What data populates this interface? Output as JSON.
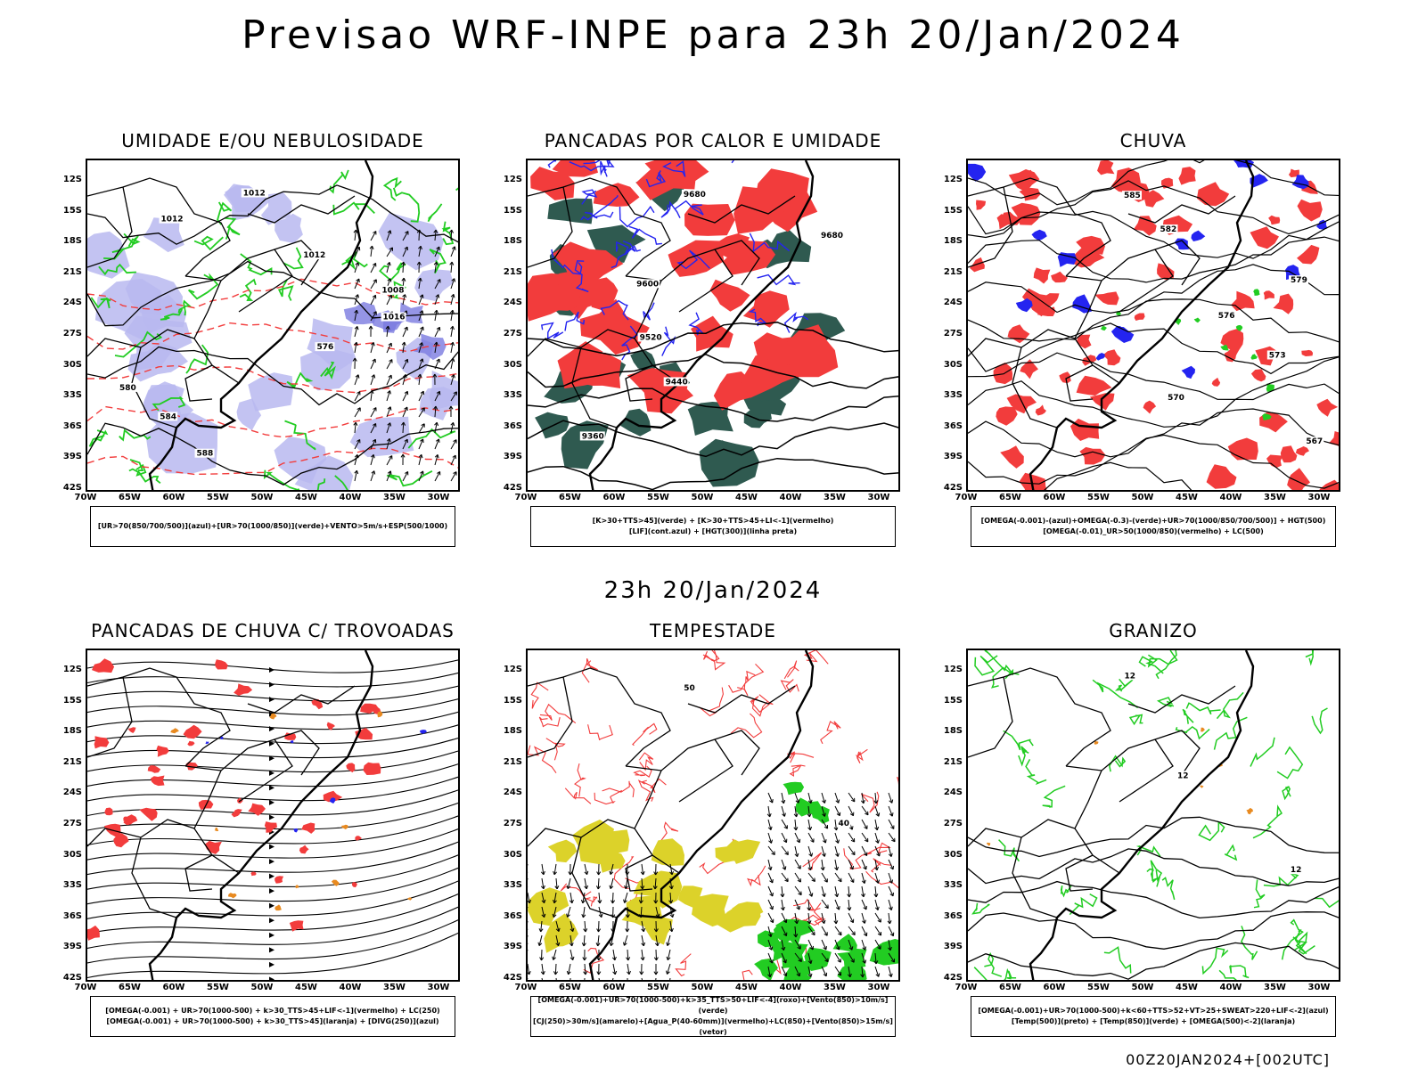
{
  "title": "Previsao WRF-INPE  para 23h 20/Jan/2024",
  "subtitle": "23h 20/Jan/2024",
  "footer": "00Z20JAN2024+[002UTC]",
  "axes": {
    "lat_labels": [
      "12S",
      "15S",
      "18S",
      "21S",
      "24S",
      "27S",
      "30S",
      "33S",
      "36S",
      "39S",
      "42S"
    ],
    "lon_labels": [
      "70W",
      "65W",
      "60W",
      "55W",
      "50W",
      "45W",
      "40W",
      "35W",
      "30W"
    ]
  },
  "colors": {
    "red": "#f23c3c",
    "green": "#22cc22",
    "blue": "#2424f0",
    "lavender": "#b8b8f0",
    "darkgreen": "#2f5a50",
    "yellow": "#dcd22a",
    "orange": "#e88a20",
    "black": "#000000"
  },
  "panels": [
    {
      "title": "UMIDADE E/OU NEBULOSIDADE",
      "legend": [
        "[UR>70(850/700/500)](azul)+[UR>70(1000/850)](verde)+VENTO>5m/s+ESP(500/1000)"
      ],
      "contour_labels": [
        "1012",
        "1012",
        "1012",
        "1008",
        "1016",
        "576",
        "580",
        "584",
        "588"
      ]
    },
    {
      "title": "PANCADAS POR CALOR E UMIDADE",
      "legend": [
        "[K>30+TTS>45](verde)  +  [K>30+TTS>45+LI<-1](vermelho)",
        "[LIF](cont.azul)  +  [HGT(300)](linha preta)"
      ],
      "contour_labels": [
        "9680",
        "9680",
        "9600",
        "9520",
        "9440",
        "9360"
      ]
    },
    {
      "title": "CHUVA",
      "legend": [
        "[OMEGA(-0.001)-(azul)+OMEGA(-0.3)-(verde)+UR>70(1000/850/700/500)]  +  HGT(500)",
        "[OMEGA(-0.01)_UR>50(1000/850)(vermelho)  +  LC(500)"
      ],
      "contour_labels": [
        "585",
        "582",
        "579",
        "576",
        "573",
        "570",
        "567"
      ]
    },
    {
      "title": "PANCADAS DE CHUVA C/ TROVOADAS",
      "legend": [
        "[OMEGA(-0.001)  +  UR>70(1000-500)  +  k>30_TTS>45+LIF<-1](vermelho)  +  LC(250)",
        "[OMEGA(-0.001)  +  UR>70(1000-500)  +  k>30_TTS>45](laranja)  +  [DIVG(250)](azul)"
      ],
      "contour_labels": []
    },
    {
      "title": "TEMPESTADE",
      "legend": [
        "[OMEGA(-0.001)+UR>70(1000-500)+k>35_TTS>50+LIF<-4](roxo)+[Vento(850)>10m/s](verde)",
        "[CJ(250)>30m/s](amarelo)+[Agua_P(40-60mm)](vermelho)+LC(850)+[Vento(850)>15m/s](vetor)"
      ],
      "contour_labels": [
        "50",
        "40"
      ]
    },
    {
      "title": "GRANIZO",
      "legend": [
        "[OMEGA(-0.001)+UR>70(1000-500)+k<60+TTS>52+VT>25+SWEAT>220+LIF<-2](azul)",
        "[Temp(500)](preto)  +  [Temp(850)](verde)  +  [OMEGA(500)<-2](laranja)"
      ],
      "contour_labels": [
        "12",
        "12",
        "12"
      ]
    }
  ]
}
